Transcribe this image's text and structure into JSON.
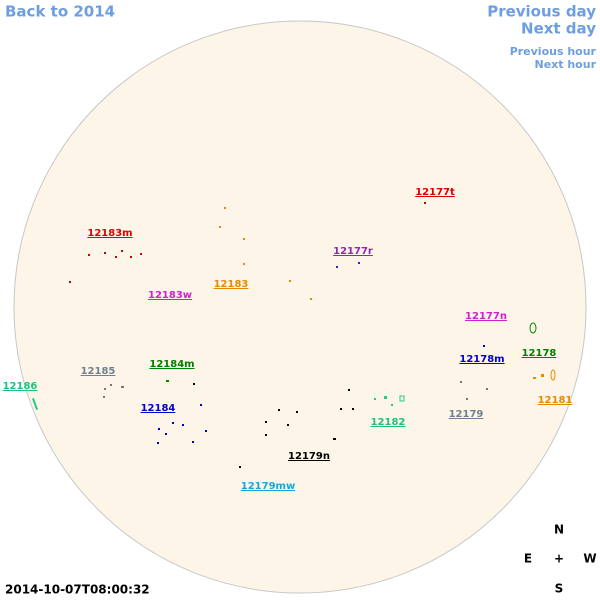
{
  "nav": {
    "back": "Back to 2014",
    "previous_day": "Previous day",
    "next_day": "Next day",
    "previous_hour": "Previous hour",
    "next_hour": "Next hour"
  },
  "regions": [
    "12177t",
    "12183m",
    "12177r",
    "12183",
    "12183w",
    "12177n",
    "12178m",
    "12178",
    "12184m",
    "12185",
    "12186",
    "12181",
    "12184",
    "12179",
    "12182",
    "12179n",
    "12179mw"
  ],
  "compass": {
    "north": "N",
    "east": "E",
    "center": "+",
    "west": "W",
    "south": "S"
  },
  "timestamp": "2014-10-07T08:00:32"
}
